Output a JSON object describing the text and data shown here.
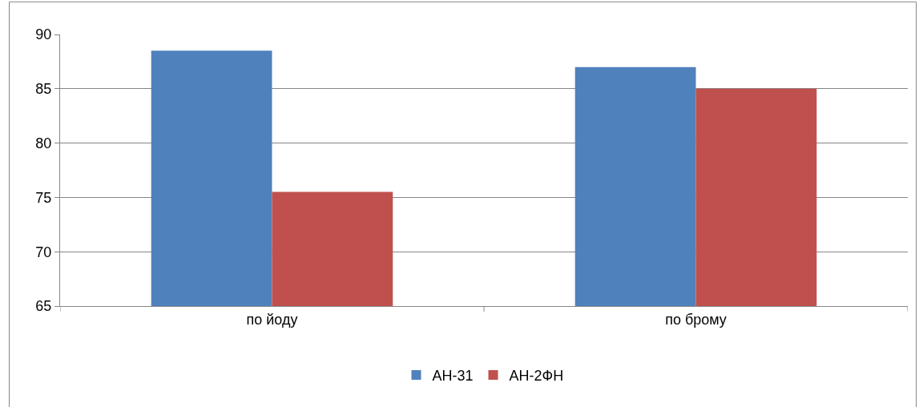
{
  "chart_data": {
    "type": "bar",
    "categories": [
      "по йоду",
      "по брому"
    ],
    "series": [
      {
        "name": "АН-31",
        "color": "#4f81bd",
        "values": [
          88.5,
          87
        ]
      },
      {
        "name": "АН-2ФН",
        "color": "#c0504d",
        "values": [
          75.5,
          85
        ]
      }
    ],
    "ylim": [
      65,
      90
    ],
    "yticks": [
      65,
      70,
      75,
      80,
      85,
      90
    ],
    "grid": "y",
    "legend": "bottom"
  }
}
